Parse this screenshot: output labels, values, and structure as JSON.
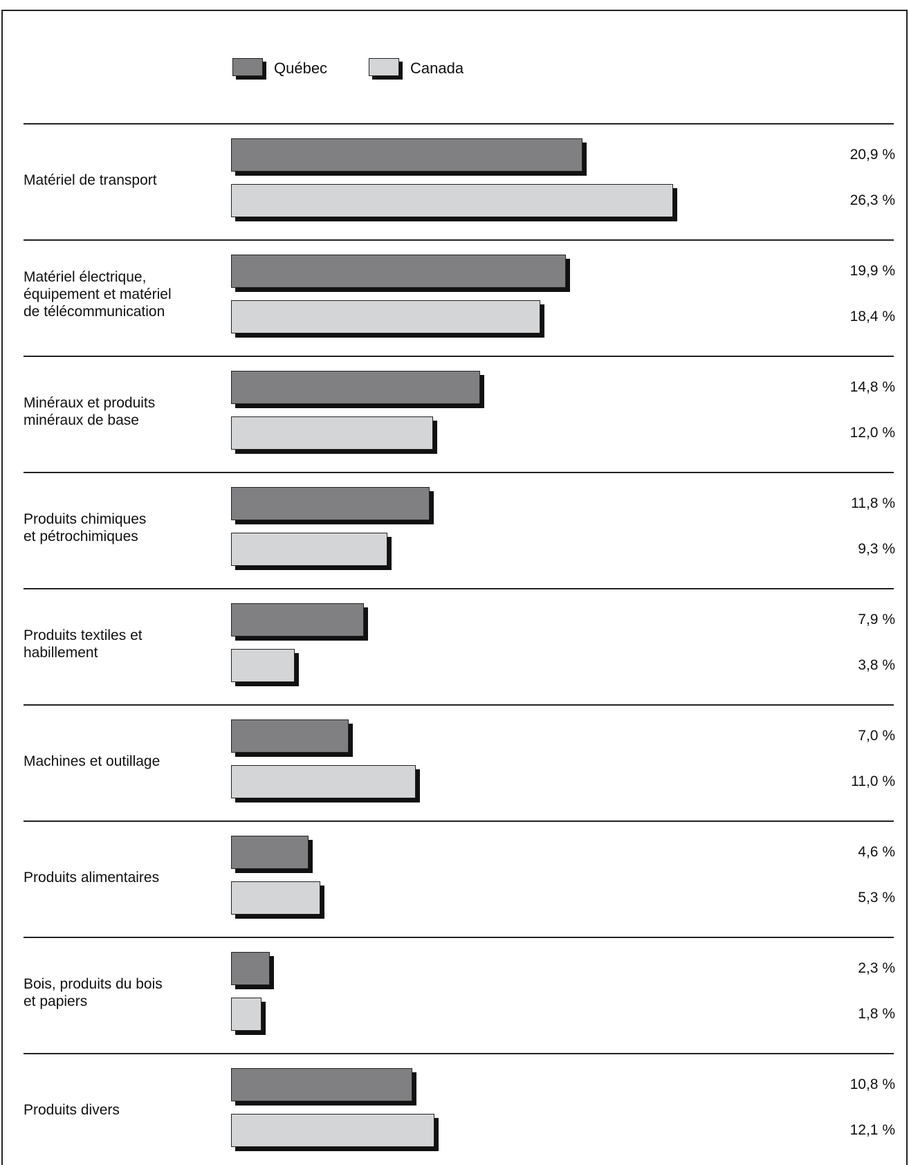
{
  "legend": [
    {
      "name": "Québec",
      "color": "#808083"
    },
    {
      "name": "Canada",
      "color": "#d4d5d6"
    }
  ],
  "chart_data": {
    "type": "bar",
    "orientation": "horizontal",
    "categories": [
      "Matériel de transport",
      "Matériel électrique,\néquipement et matériel\nde  télécommunication",
      "Minéraux et produits\nminéraux de base",
      "Produits chimiques\net pétrochimiques",
      "Produits textiles et\nhabillement",
      "Machines et outillage",
      "Produits alimentaires",
      "Bois, produits du bois\net papiers",
      "Produits divers"
    ],
    "series": [
      {
        "name": "Québec",
        "values": [
          20.9,
          19.9,
          14.8,
          11.8,
          7.9,
          7.0,
          4.6,
          2.3,
          10.8
        ],
        "labels": [
          "20,9 %",
          "19,9 %",
          "14,8 %",
          "11,8 %",
          "7,9 %",
          "7,0 %",
          "4,6 %",
          "2,3 %",
          "10,8 %"
        ]
      },
      {
        "name": "Canada",
        "values": [
          26.3,
          18.4,
          12.0,
          9.3,
          3.8,
          11.0,
          5.3,
          1.8,
          12.1
        ],
        "labels": [
          "26,3 %",
          "18,4 %",
          "12,0 %",
          "9,3 %",
          "3,8 %",
          "11,0 %",
          "5,3 %",
          "1,8 %",
          "12,1 %"
        ]
      }
    ],
    "unit": "%",
    "legend_position": "top-left",
    "grid": false
  }
}
